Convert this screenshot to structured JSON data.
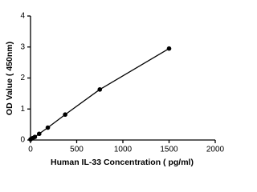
{
  "chart_data": {
    "type": "scatter",
    "xlabel": "Human IL-33   Concentration ( pg/ml)",
    "ylabel": "OD Value ( 450nm)",
    "x": [
      0,
      23.4,
      46.9,
      93.75,
      187.5,
      375,
      750,
      1500
    ],
    "series": [
      {
        "color": "#000000",
        "values": [
          0.02,
          0.06,
          0.1,
          0.2,
          0.4,
          0.82,
          1.63,
          2.95
        ]
      }
    ],
    "xlim": [
      0,
      2000
    ],
    "xticks": [
      0,
      500,
      1000,
      1500,
      2000
    ],
    "ylim": [
      0,
      4
    ],
    "yticks": [
      0,
      1,
      2,
      3,
      4
    ],
    "fit_curve": true
  }
}
